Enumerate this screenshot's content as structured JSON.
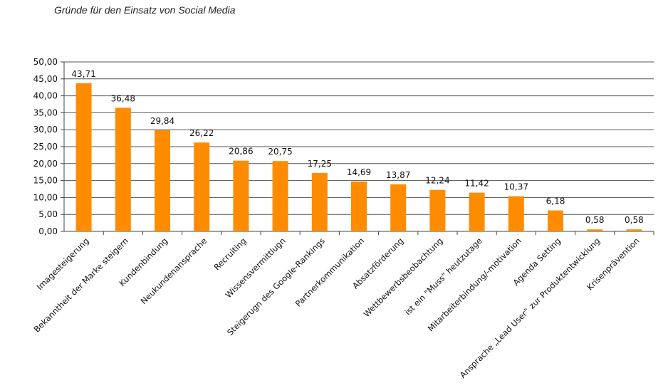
{
  "chart_data": {
    "type": "bar",
    "title": "Gründe für den Einsatz von Social Media",
    "categories": [
      "Imagesteigerung",
      "Bekanntheit der Marke steigern",
      "Kundenbindung",
      "Neukundenansprache",
      "Recruiting",
      "Wissensvermittlugn",
      "Steigerugn des Google-Rankings",
      "Partnerkommunikation",
      "Absatzförderung",
      "Wettbewerbsbeobachtung",
      "ist ein \"Muss\" heutzutage",
      "Mitarbeiterbindung/-motivation",
      "Agenda Setting",
      "Ansprache „Lead User“ zur Produktentwicklung",
      "Krisenprävention"
    ],
    "values": [
      43.71,
      36.48,
      29.84,
      26.22,
      20.86,
      20.75,
      17.25,
      14.69,
      13.87,
      12.24,
      11.42,
      10.37,
      6.18,
      0.58,
      0.58
    ],
    "value_labels": [
      "43,71",
      "36,48",
      "29,84",
      "26,22",
      "20,86",
      "20,75",
      "17,25",
      "14,69",
      "13,87",
      "12,24",
      "11,42",
      "10,37",
      "6,18",
      "0,58",
      "0,58"
    ],
    "yticks": [
      "0,00",
      "5,00",
      "10,00",
      "15,00",
      "20,00",
      "25,00",
      "30,00",
      "35,00",
      "40,00",
      "45,00",
      "50,00"
    ],
    "ylim": [
      0,
      50
    ],
    "grid": true,
    "bar_color": "#FF8C00",
    "grid_color": "#555555"
  }
}
